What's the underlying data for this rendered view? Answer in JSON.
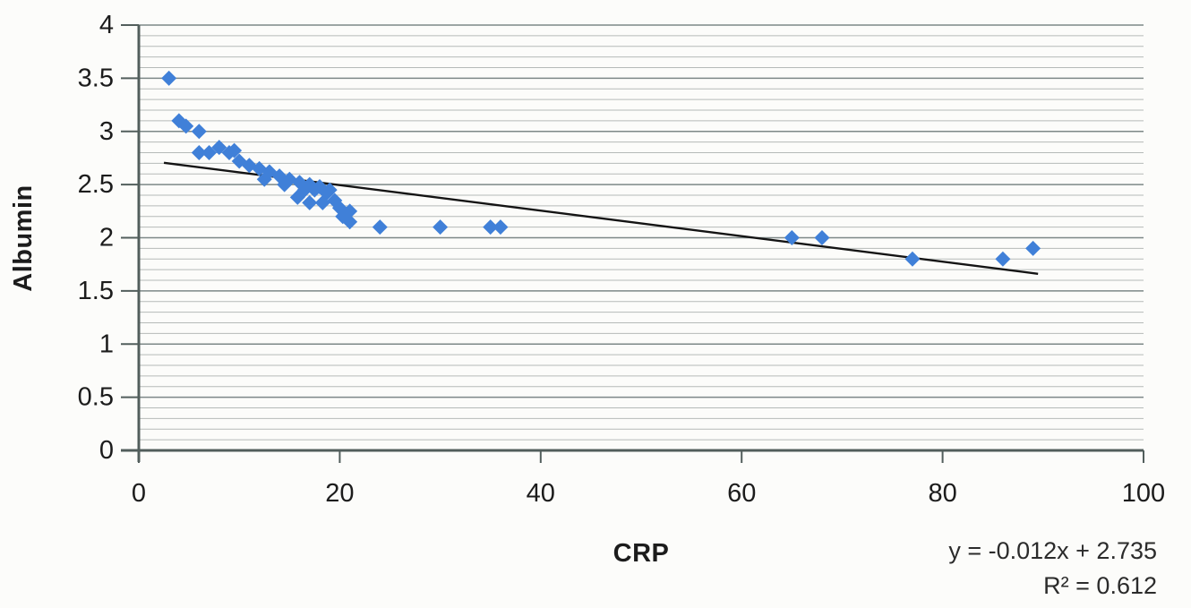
{
  "chart_data": {
    "type": "scatter",
    "title": "",
    "xlabel": "CRP",
    "ylabel": "Albumin",
    "xlim": [
      0,
      100
    ],
    "ylim": [
      0,
      4
    ],
    "x_tick_values": [
      0,
      20,
      40,
      60,
      80,
      100
    ],
    "x_tick_labels": [
      "0",
      "20",
      "40",
      "60",
      "80",
      "100"
    ],
    "y_tick_values": [
      0,
      0.5,
      1,
      1.5,
      2,
      2.5,
      3,
      3.5,
      4
    ],
    "y_tick_labels": [
      "0",
      "0.5",
      "1",
      "1.5",
      "2",
      "2.5",
      "3",
      "3.5",
      "4"
    ],
    "y_minor_step": 0.1,
    "grid": "horizontal, minor and major lines, no vertical grid",
    "legend": "none",
    "marker": {
      "shape": "diamond",
      "name": "diamond-marker",
      "color": "#4080d8",
      "size": 17
    },
    "points": [
      [
        3,
        3.5
      ],
      [
        4,
        3.1
      ],
      [
        4.7,
        3.05
      ],
      [
        6,
        3.0
      ],
      [
        6,
        2.8
      ],
      [
        7,
        2.8
      ],
      [
        8,
        2.85
      ],
      [
        9,
        2.8
      ],
      [
        9.5,
        2.82
      ],
      [
        10,
        2.72
      ],
      [
        11,
        2.68
      ],
      [
        12,
        2.65
      ],
      [
        12.5,
        2.55
      ],
      [
        13,
        2.62
      ],
      [
        14,
        2.58
      ],
      [
        14.5,
        2.5
      ],
      [
        15,
        2.55
      ],
      [
        15.8,
        2.38
      ],
      [
        16,
        2.52
      ],
      [
        16.5,
        2.45
      ],
      [
        17,
        2.5
      ],
      [
        17,
        2.33
      ],
      [
        17.5,
        2.45
      ],
      [
        18,
        2.48
      ],
      [
        18.3,
        2.33
      ],
      [
        18.7,
        2.42
      ],
      [
        19,
        2.45
      ],
      [
        19.5,
        2.35
      ],
      [
        20,
        2.28
      ],
      [
        20.3,
        2.2
      ],
      [
        21,
        2.25
      ],
      [
        21,
        2.15
      ],
      [
        24,
        2.1
      ],
      [
        30,
        2.1
      ],
      [
        35,
        2.1
      ],
      [
        36,
        2.1
      ],
      [
        65,
        2.0
      ],
      [
        68,
        2.0
      ],
      [
        77,
        1.8
      ],
      [
        86,
        1.8
      ],
      [
        89,
        1.9
      ]
    ],
    "trendline": {
      "slope": -0.012,
      "intercept": 2.735,
      "x_start": 2.5,
      "x_end": 89.5,
      "color": "#141414"
    },
    "annotation": {
      "line1": "y = -0.012x + 2.735",
      "line2": "R² = 0.612"
    }
  },
  "colors": {
    "background": "#fcfcfa",
    "minor_grid": "#b5bab8",
    "major_grid": "#7d8887",
    "axis": "#525e5c",
    "tick_text": "#1c1c1c",
    "marker": "#4080d8",
    "trendline": "#141414"
  }
}
